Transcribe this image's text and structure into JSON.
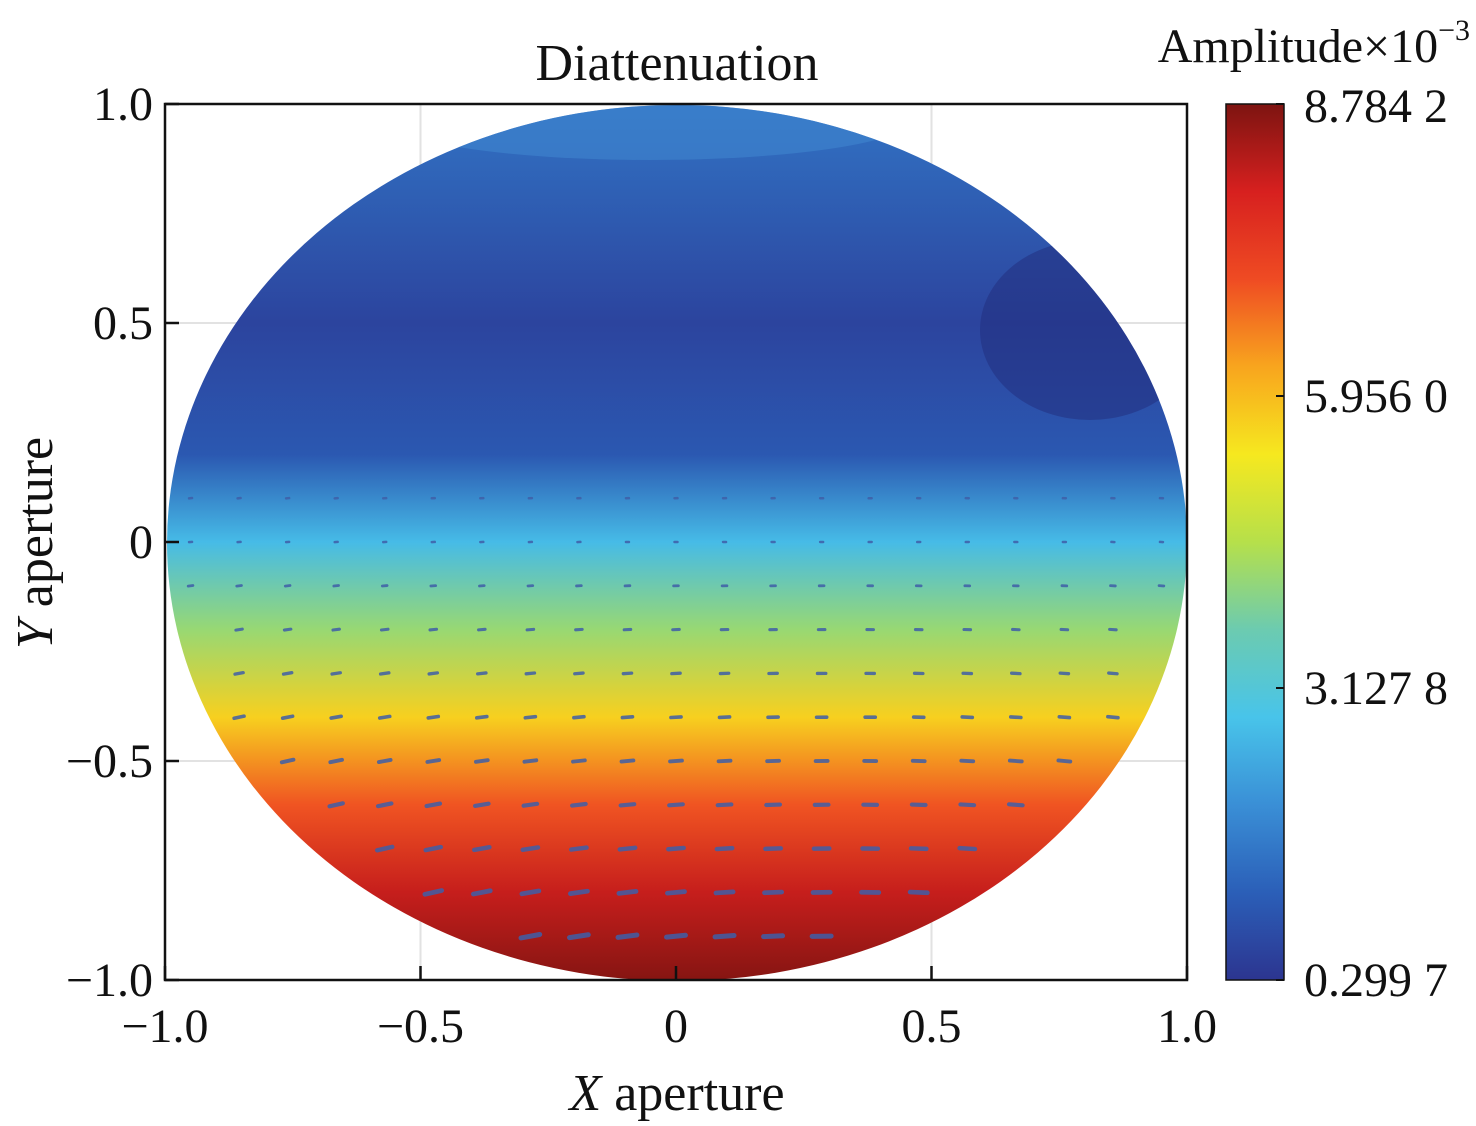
{
  "chart_data": {
    "type": "heatmap",
    "title": "Diattenuation",
    "xlabel": {
      "var": "X",
      "rest": " aperture"
    },
    "ylabel": {
      "var": "Y",
      "rest": " aperture"
    },
    "xlim": [
      -1.0,
      1.0
    ],
    "ylim": [
      -1.0,
      1.0
    ],
    "x_ticks": [
      {
        "value": -1.0,
        "label": "−1.0"
      },
      {
        "value": -0.5,
        "label": "−0.5"
      },
      {
        "value": 0,
        "label": "0"
      },
      {
        "value": 0.5,
        "label": "0.5"
      },
      {
        "value": 1.0,
        "label": "1.0"
      }
    ],
    "y_ticks": [
      {
        "value": -1.0,
        "label": "−1.0"
      },
      {
        "value": -0.5,
        "label": "−0.5"
      },
      {
        "value": 0,
        "label": "0"
      },
      {
        "value": 0.5,
        "label": "0.5"
      },
      {
        "value": 1.0,
        "label": "1.0"
      }
    ],
    "grid": true,
    "colorbar": {
      "title": {
        "text": "Amplitude×10",
        "exp": "−3"
      },
      "range": [
        0.2997,
        8.7842
      ],
      "ticks": [
        {
          "value": 8.7842,
          "label": "8.784 2"
        },
        {
          "value": 5.956,
          "label": "5.956 0"
        },
        {
          "value": 3.1278,
          "label": "3.127 8"
        },
        {
          "value": 0.2997,
          "label": "0.299 7"
        }
      ],
      "colormap": [
        "#2c3590",
        "#2b5fb8",
        "#3a8fd6",
        "#48c4ea",
        "#6ccbb0",
        "#b6e04a",
        "#f6e81f",
        "#f8a51e",
        "#ef4b23",
        "#d7201f",
        "#7d1411"
      ]
    },
    "field_profile": {
      "description_y": [
        1.0,
        0.5,
        0.2,
        0.0,
        -0.2,
        -0.4,
        -0.6,
        -0.8,
        -1.0
      ],
      "values": [
        1.5,
        0.6,
        1.0,
        2.7,
        4.2,
        5.7,
        7.0,
        8.1,
        8.7
      ]
    },
    "vectors": {
      "y_rows": [
        0.1,
        0.0,
        -0.1,
        -0.2,
        -0.3,
        -0.4,
        -0.5,
        -0.6,
        -0.7,
        -0.8,
        -0.9
      ],
      "x_spacing": 0.095
    }
  }
}
